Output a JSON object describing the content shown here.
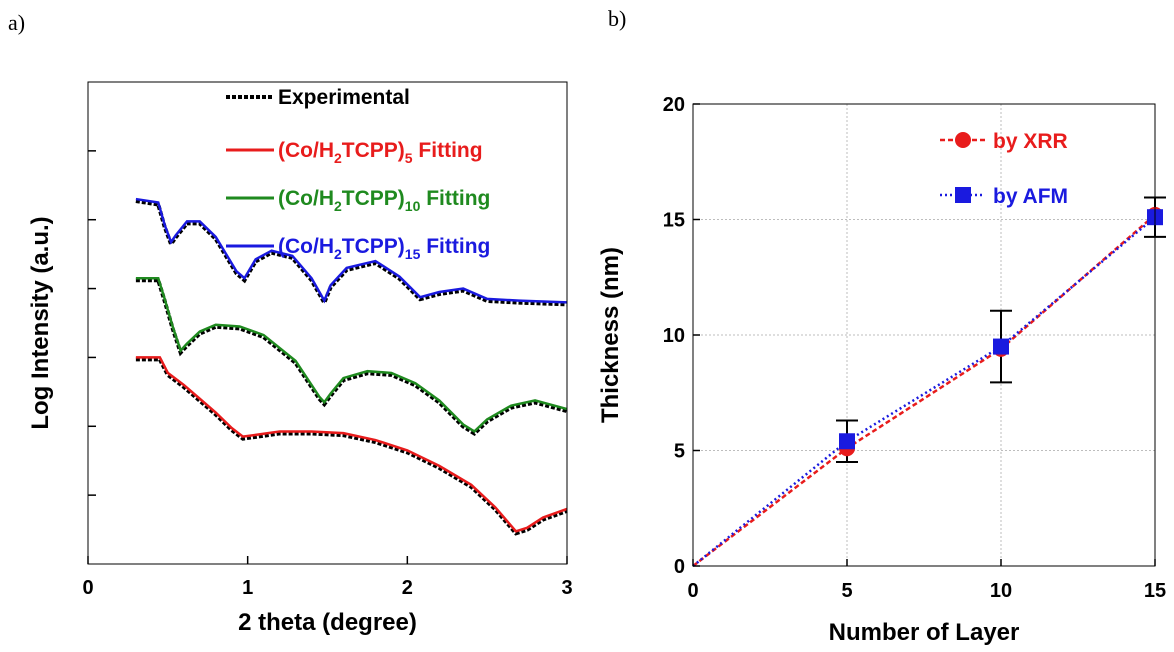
{
  "panels": {
    "a_label": "a)",
    "b_label": "b)"
  },
  "colors": {
    "experimental": "#000000",
    "fit5": "#e81c1c",
    "fit10": "#1f8a1f",
    "fit15": "#1a1adf",
    "xrr": "#e81c1c",
    "afm": "#1a1adf"
  },
  "chart_data": [
    {
      "type": "line",
      "xlabel": "2 theta (degree)",
      "ylabel": "Log Intensity (a.u.)",
      "xlim": [
        0,
        3
      ],
      "xticks": [
        "0",
        "1",
        "2",
        "3"
      ],
      "yticks_labeled": false,
      "legend_position": "top-right",
      "legend": [
        {
          "name": "Experimental",
          "color": "#000000",
          "style": "dashed"
        },
        {
          "name": "(Co/H2TCPP)5 Fitting",
          "base": "(Co/H",
          "sub1": "2",
          "mid": "TCPP)",
          "sub2": "5",
          "tail": " Fitting",
          "color": "#e81c1c"
        },
        {
          "name": "(Co/H2TCPP)10 Fitting",
          "base": "(Co/H",
          "sub1": "2",
          "mid": "TCPP)",
          "sub2": "10",
          "tail": " Fitting",
          "color": "#1f8a1f"
        },
        {
          "name": "(Co/H2TCPP)15 Fitting",
          "base": "(Co/H",
          "sub1": "2",
          "mid": "TCPP)",
          "sub2": "15",
          "tail": " Fitting",
          "color": "#1a1adf"
        }
      ],
      "series": [
        {
          "name": "(Co/H2TCPP)5 Fitting",
          "x": [
            0.3,
            0.45,
            0.5,
            0.6,
            0.7,
            0.8,
            0.9,
            0.97,
            1.05,
            1.2,
            1.4,
            1.6,
            1.8,
            2.0,
            2.2,
            2.4,
            2.55,
            2.68,
            2.75,
            2.85,
            3.0
          ],
          "y": [
            6.0,
            6.0,
            5.55,
            5.2,
            4.8,
            4.4,
            3.95,
            3.7,
            3.75,
            3.85,
            3.85,
            3.8,
            3.6,
            3.3,
            2.85,
            2.3,
            1.65,
            0.95,
            1.05,
            1.35,
            1.6
          ]
        },
        {
          "name": "(Co/H2TCPP)10 Fitting",
          "x": [
            0.3,
            0.44,
            0.48,
            0.53,
            0.58,
            0.62,
            0.7,
            0.8,
            0.95,
            1.1,
            1.3,
            1.45,
            1.48,
            1.52,
            1.6,
            1.75,
            1.9,
            2.05,
            2.2,
            2.35,
            2.42,
            2.5,
            2.65,
            2.8,
            3.0
          ],
          "y": [
            8.3,
            8.3,
            7.7,
            6.9,
            6.2,
            6.4,
            6.75,
            6.95,
            6.9,
            6.65,
            5.9,
            4.85,
            4.7,
            4.95,
            5.4,
            5.6,
            5.55,
            5.25,
            4.75,
            4.05,
            3.85,
            4.2,
            4.6,
            4.75,
            4.5
          ]
        },
        {
          "name": "(Co/H2TCPP)15 Fitting",
          "x": [
            0.3,
            0.44,
            0.48,
            0.52,
            0.55,
            0.62,
            0.7,
            0.8,
            0.93,
            0.98,
            1.05,
            1.15,
            1.28,
            1.4,
            1.48,
            1.52,
            1.62,
            1.8,
            1.95,
            2.08,
            2.2,
            2.35,
            2.5,
            2.7,
            3.0
          ],
          "y": [
            10.6,
            10.5,
            9.85,
            9.35,
            9.55,
            9.95,
            9.95,
            9.5,
            8.5,
            8.3,
            8.85,
            9.1,
            8.95,
            8.3,
            7.65,
            8.1,
            8.6,
            8.8,
            8.35,
            7.75,
            7.9,
            8.0,
            7.7,
            7.65,
            7.6
          ]
        }
      ]
    },
    {
      "type": "scatter",
      "xlabel": "Number of Layer",
      "ylabel": "Thickness (nm)",
      "xlim": [
        0,
        15
      ],
      "ylim": [
        0,
        20
      ],
      "xticks": [
        0,
        5,
        10,
        15
      ],
      "yticks": [
        0,
        5,
        10,
        15,
        20
      ],
      "grid": true,
      "legend_position": "top-right",
      "series": [
        {
          "name": "by XRR",
          "marker": "circle",
          "color": "#e81c1c",
          "x": [
            0,
            5,
            10,
            15
          ],
          "y": [
            0,
            5.1,
            9.4,
            15.2
          ]
        },
        {
          "name": "by AFM",
          "marker": "square",
          "color": "#1a1adf",
          "x": [
            0,
            5,
            10,
            15
          ],
          "y": [
            0,
            5.4,
            9.5,
            15.1
          ],
          "error": [
            0,
            0.9,
            1.55,
            0.85
          ]
        }
      ]
    }
  ]
}
